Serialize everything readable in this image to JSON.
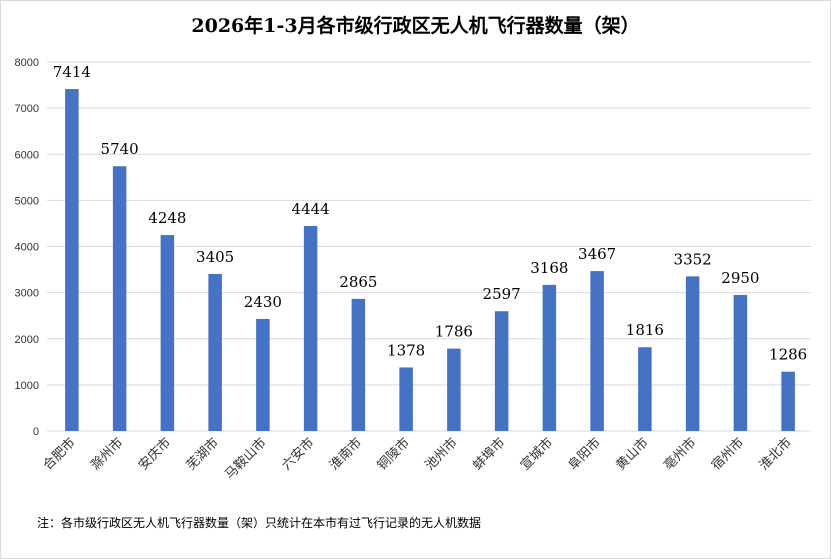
{
  "chart_data": {
    "type": "bar",
    "title": "2026年1-3月各市级行政区无人机飞行器数量（架）",
    "categories": [
      "合肥市",
      "滁州市",
      "安庆市",
      "芜湖市",
      "马鞍山市",
      "六安市",
      "淮南市",
      "铜陵市",
      "池州市",
      "蚌埠市",
      "宣城市",
      "阜阳市",
      "黄山市",
      "亳州市",
      "宿州市",
      "淮北市"
    ],
    "values": [
      7414,
      5740,
      4248,
      3405,
      2430,
      4444,
      2865,
      1378,
      1786,
      2597,
      3168,
      3467,
      1816,
      3352,
      2950,
      1286
    ],
    "data_labels": [
      "7414",
      "5740",
      "4248",
      "3405",
      "2430",
      "4444",
      "2865",
      "1378",
      "1786",
      "2597",
      "3168",
      "3467",
      "1816",
      "3352",
      "2950",
      "1286"
    ],
    "y_ticks": [
      "0",
      "1000",
      "2000",
      "3000",
      "4000",
      "5000",
      "6000",
      "7000",
      "8000"
    ],
    "ylim": [
      0,
      8000
    ],
    "grid": true,
    "bar_color": "#4472C4"
  },
  "note": "注：各市级行政区无人机飞行器数量（架）只统计在本市有过飞行记录的无人机数据"
}
